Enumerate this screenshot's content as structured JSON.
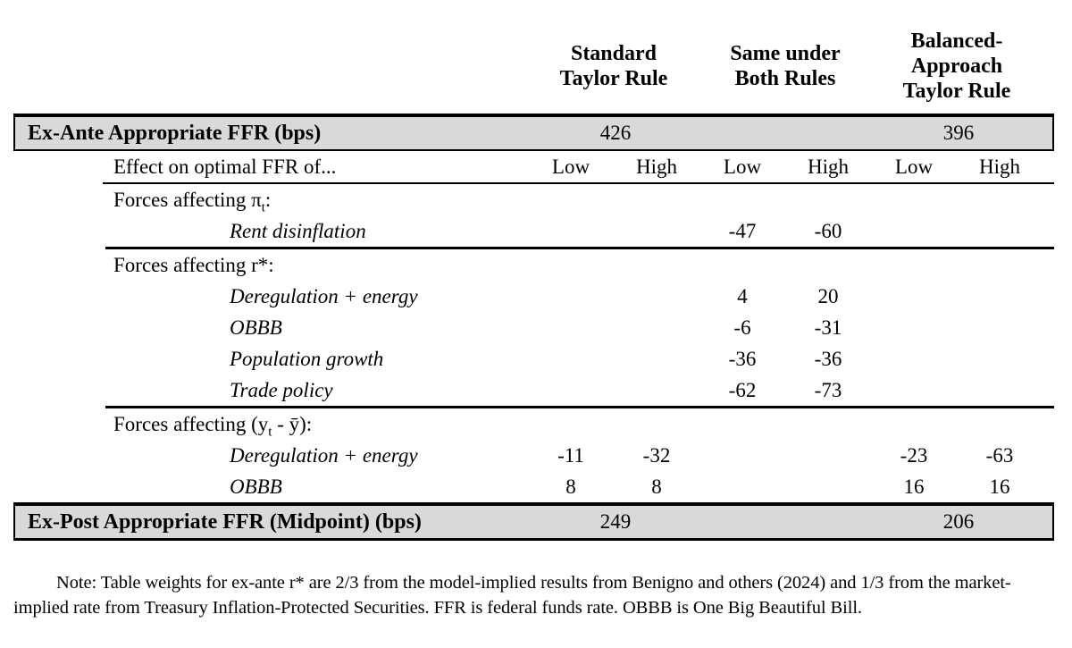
{
  "table": {
    "column_groups": [
      {
        "id": "standard",
        "label": "Standard\nTaylor Rule"
      },
      {
        "id": "same",
        "label": "Same under\nBoth Rules"
      },
      {
        "id": "balanced",
        "label": "Balanced-\nApproach\nTaylor Rule"
      }
    ],
    "sub_columns": [
      "Low",
      "High",
      "Low",
      "High",
      "Low",
      "High"
    ],
    "ex_ante": {
      "label": "Ex-Ante Appropriate FFR (bps)",
      "standard_value": "426",
      "balanced_value": "396"
    },
    "effect_row_label": "Effect on optimal FFR of...",
    "sections": [
      {
        "header_pre": "Forces affecting π",
        "header_sub": "t",
        "header_post": ":",
        "rows": [
          {
            "label": "Rent disinflation",
            "values": [
              "",
              "",
              "-47",
              "-60",
              "",
              ""
            ]
          }
        ]
      },
      {
        "header_pre": "Forces affecting r*:",
        "header_sub": "",
        "header_post": "",
        "rows": [
          {
            "label": "Deregulation + energy",
            "values": [
              "",
              "",
              "4",
              "20",
              "",
              ""
            ]
          },
          {
            "label": "OBBB",
            "values": [
              "",
              "",
              "-6",
              "-31",
              "",
              ""
            ]
          },
          {
            "label": "Population growth",
            "values": [
              "",
              "",
              "-36",
              "-36",
              "",
              ""
            ]
          },
          {
            "label": "Trade policy",
            "values": [
              "",
              "",
              "-62",
              "-73",
              "",
              ""
            ]
          }
        ]
      },
      {
        "header_pre": "Forces affecting (y",
        "header_sub": "t",
        "header_post": " - ȳ):",
        "rows": [
          {
            "label": "Deregulation + energy",
            "values": [
              "-11",
              "-32",
              "",
              "",
              "-23",
              "-63"
            ]
          },
          {
            "label": "OBBB",
            "values": [
              "8",
              "8",
              "",
              "",
              "16",
              "16"
            ]
          }
        ]
      }
    ],
    "ex_post": {
      "label": "Ex-Post Appropriate FFR (Midpoint) (bps)",
      "standard_value": "249",
      "balanced_value": "206"
    }
  },
  "note": "Note:  Table weights for ex-ante r* are 2/3 from the model-implied results from Benigno and others (2024) and 1/3 from the market-implied rate from Treasury Inflation-Protected Securities.  FFR is federal funds rate.  OBBB is One Big Beautiful Bill.",
  "colors": {
    "row_highlight": "#d9d9d9",
    "rule": "#000000",
    "background": "#ffffff",
    "text": "#000000"
  }
}
